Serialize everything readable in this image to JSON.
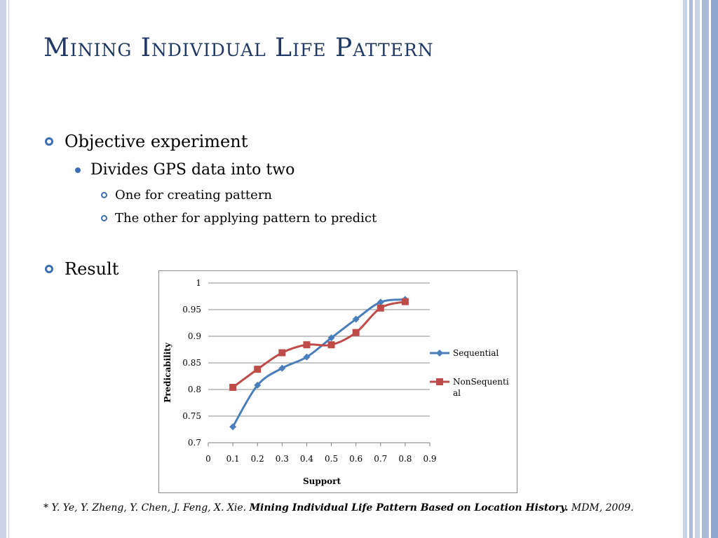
{
  "slide": {
    "title": "Mining Individual Life Pattern",
    "bullets": {
      "objective": "Objective experiment",
      "divides": "Divides GPS data into two",
      "one_for": "One for creating pattern",
      "other_for": "The other for applying pattern to predict",
      "result": "Result"
    },
    "citation": {
      "star": "*",
      "authors": " Y. Ye, Y. Zheng, Y. Chen, J. Feng, X. Xie. ",
      "paper_title": "Mining Individual Life Pattern Based on Location History.",
      "venue": " MDM, 2009."
    },
    "colors": {
      "title": "#1f3864",
      "accent": "#3d6eb5",
      "decor_light": "#c9d3e6",
      "decor_mid": "#aebbd8",
      "decor_dark": "#8fa4cc"
    }
  },
  "chart_data": {
    "type": "line",
    "xlabel": "Support",
    "ylabel": "Predicability",
    "x_ticks": [
      "0",
      "0.1",
      "0.2",
      "0.3",
      "0.4",
      "0.5",
      "0.6",
      "0.7",
      "0.8",
      "0.9"
    ],
    "y_ticks": [
      "0.7",
      "0.75",
      "0.8",
      "0.85",
      "0.9",
      "0.95",
      "1"
    ],
    "xlim": [
      0,
      0.9
    ],
    "ylim": [
      0.7,
      1
    ],
    "grid": "horizontal",
    "legend_position": "right",
    "series": [
      {
        "name": "Sequential",
        "legend_lines": [
          "Sequential"
        ],
        "color": "#4a7ebb",
        "marker": "diamond",
        "x": [
          0.1,
          0.2,
          0.3,
          0.4,
          0.5,
          0.6,
          0.7,
          0.8
        ],
        "y": [
          0.73,
          0.808,
          0.84,
          0.861,
          0.897,
          0.932,
          0.964,
          0.969
        ]
      },
      {
        "name": "NonSequential",
        "legend_lines": [
          "NonSequenti",
          "al"
        ],
        "color": "#be4b48",
        "marker": "square",
        "x": [
          0.1,
          0.2,
          0.3,
          0.4,
          0.5,
          0.6,
          0.7,
          0.8
        ],
        "y": [
          0.804,
          0.838,
          0.869,
          0.884,
          0.884,
          0.907,
          0.953,
          0.965
        ]
      }
    ]
  }
}
